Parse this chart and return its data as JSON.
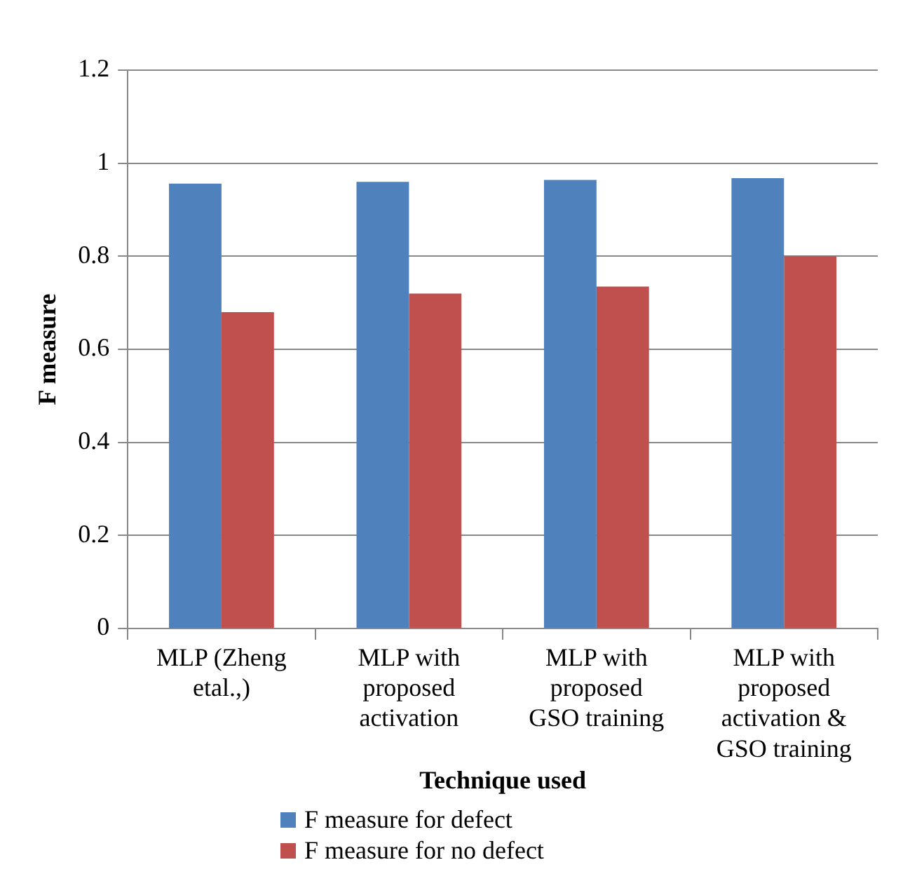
{
  "chart_data": {
    "type": "bar",
    "xlabel": "Technique used",
    "ylabel": "F measure",
    "categories": [
      "MLP (Zheng etal.,)",
      "MLP with proposed activation",
      "MLP with proposed GSO training",
      "MLP with proposed activation & GSO training"
    ],
    "series": [
      {
        "name": "F measure for defect",
        "color": "#4f81bd",
        "values": [
          0.956,
          0.96,
          0.964,
          0.968
        ]
      },
      {
        "name": "F measure for no defect",
        "color": "#c0504d",
        "values": [
          0.68,
          0.72,
          0.735,
          0.8
        ]
      }
    ],
    "ylim": [
      0,
      1.2
    ],
    "yticks": [
      0,
      0.2,
      0.4,
      0.6,
      0.8,
      1,
      1.2
    ],
    "grid": "y",
    "legend": "bottom"
  }
}
